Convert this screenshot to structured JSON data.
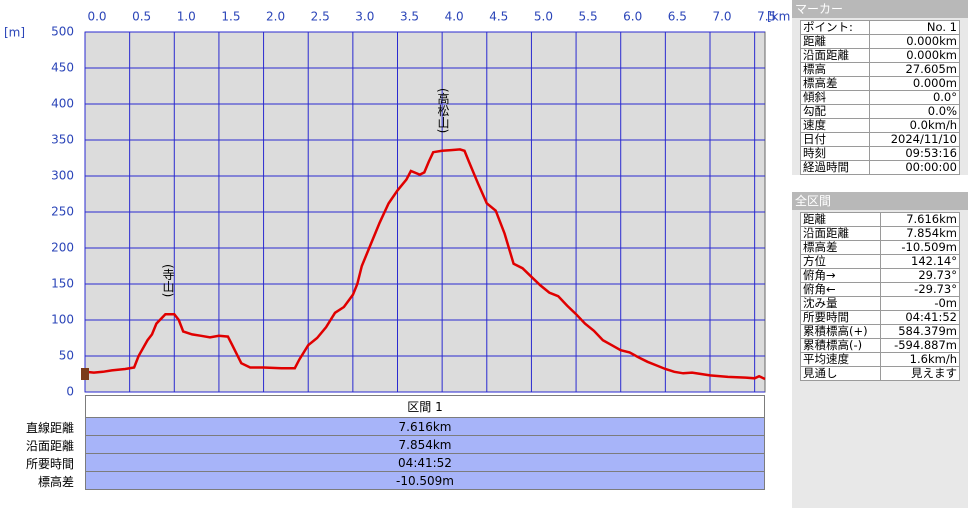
{
  "chart_data": {
    "type": "line",
    "x_unit": "[km]",
    "y_unit": "[m]",
    "x": [
      0,
      0.1,
      0.2,
      0.3,
      0.45,
      0.55,
      0.6,
      0.7,
      0.75,
      0.8,
      0.9,
      1.0,
      1.05,
      1.1,
      1.2,
      1.3,
      1.4,
      1.5,
      1.6,
      1.65,
      1.75,
      1.85,
      2.0,
      2.2,
      2.35,
      2.4,
      2.5,
      2.6,
      2.7,
      2.8,
      2.9,
      3.0,
      3.05,
      3.1,
      3.2,
      3.3,
      3.4,
      3.5,
      3.6,
      3.65,
      3.75,
      3.8,
      3.85,
      3.9,
      4.0,
      4.1,
      4.2,
      4.25,
      4.3,
      4.4,
      4.5,
      4.6,
      4.7,
      4.8,
      4.9,
      5.0,
      5.1,
      5.2,
      5.3,
      5.4,
      5.5,
      5.6,
      5.7,
      5.8,
      5.9,
      6.0,
      6.1,
      6.2,
      6.3,
      6.4,
      6.5,
      6.6,
      6.7,
      6.8,
      6.9,
      7.0,
      7.2,
      7.4,
      7.5,
      7.55,
      7.616
    ],
    "values": [
      28,
      27,
      28,
      30,
      32,
      34,
      50,
      72,
      80,
      95,
      108,
      108,
      100,
      84,
      80,
      78,
      76,
      78,
      77,
      65,
      40,
      34,
      34,
      33,
      33,
      45,
      65,
      75,
      90,
      110,
      118,
      135,
      150,
      175,
      205,
      235,
      262,
      280,
      295,
      307,
      302,
      305,
      320,
      333,
      335,
      336,
      337,
      335,
      320,
      290,
      262,
      252,
      220,
      178,
      172,
      160,
      148,
      138,
      133,
      120,
      108,
      95,
      85,
      72,
      65,
      58,
      55,
      48,
      42,
      37,
      32,
      28,
      26,
      27,
      25,
      23,
      21,
      20,
      19,
      22,
      18
    ],
    "color": "#e00000",
    "xlim": [
      0,
      7.616
    ],
    "ylim": [
      0,
      500
    ],
    "xticks": [
      {
        "value": 0,
        "label": "0.0"
      },
      0.5,
      {
        "value": 1,
        "label": "1.0"
      },
      1.5,
      {
        "value": 2,
        "label": "2.0"
      },
      2.5,
      {
        "value": 3,
        "label": "3.0"
      },
      3.5,
      {
        "value": 4,
        "label": "4.0"
      },
      4.5,
      {
        "value": 5,
        "label": "5.0"
      },
      5.5,
      {
        "value": 6,
        "label": "6.0"
      },
      6.5,
      {
        "value": 7,
        "label": "7.0"
      },
      7.5
    ],
    "yticks": [
      0,
      50,
      100,
      150,
      200,
      250,
      300,
      350,
      400,
      450,
      500
    ],
    "grid": true,
    "annotations": [
      "(寺山)",
      "(高松山)"
    ]
  },
  "section_table": {
    "header": "区間 1",
    "rows": [
      [
        "直線距離",
        "7.616km"
      ],
      [
        "沿面距離",
        "7.854km"
      ],
      [
        "所要時間",
        "04:41:52"
      ],
      [
        "標高差",
        "-10.509m"
      ]
    ]
  },
  "marker_panel": {
    "title": "マーカー",
    "rows": [
      [
        "ポイント:",
        "No. 1"
      ],
      [
        "距離",
        "0.000km"
      ],
      [
        "沿面距離",
        "0.000km"
      ],
      [
        "標高",
        "27.605m"
      ],
      [
        "標高差",
        "0.000m"
      ],
      [
        "傾斜",
        "0.0°"
      ],
      [
        "勾配",
        "0.0%"
      ],
      [
        "速度",
        "0.0km/h"
      ],
      [
        "日付",
        "2024/11/10"
      ],
      [
        "時刻",
        "09:53:16"
      ],
      [
        "経過時間",
        "00:00:00"
      ]
    ]
  },
  "total_panel": {
    "title": "全区間",
    "rows": [
      [
        "距離",
        "7.616km"
      ],
      [
        "沿面距離",
        "7.854km"
      ],
      [
        "標高差",
        "-10.509m"
      ],
      [
        "方位",
        "142.14°"
      ],
      [
        "俯角→",
        "29.73°"
      ],
      [
        "俯角←",
        "-29.73°"
      ],
      [
        "沈み量",
        "-0m"
      ],
      [
        "所要時間",
        "04:41:52"
      ],
      [
        "累積標高(+)",
        "584.379m"
      ],
      [
        "累積標高(-)",
        "-594.887m"
      ],
      [
        "平均速度",
        "1.6km/h"
      ],
      [
        "見通し",
        "見えます"
      ]
    ]
  }
}
